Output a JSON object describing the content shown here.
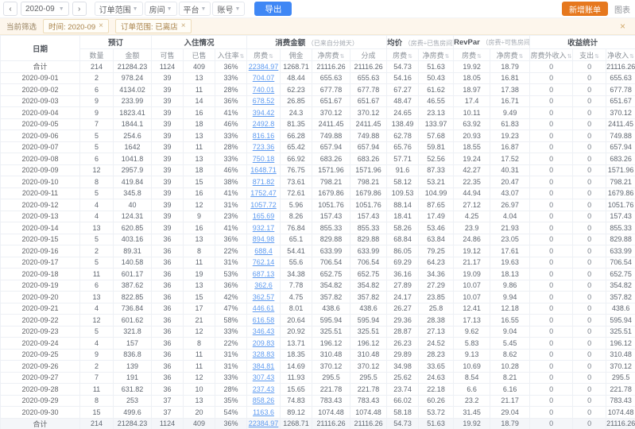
{
  "toolbar": {
    "prev": "‹",
    "month": "2020-09",
    "next": "›",
    "dropdowns": [
      "订单范围",
      "房间",
      "平台",
      "账号"
    ],
    "export_label": "导出",
    "add_label": "新增账单",
    "chart_label": "图表"
  },
  "filter_bar": {
    "label": "当前筛选",
    "tags": [
      {
        "text": "时间: 2020-09"
      },
      {
        "text": "订单范围: 已离店"
      }
    ],
    "close": "×"
  },
  "table": {
    "date_header": "日期",
    "groups": [
      {
        "label": "预订",
        "note": "",
        "span": 2
      },
      {
        "label": "入住情况",
        "note": "",
        "span": 3
      },
      {
        "label": "消费金额",
        "note": "（已来自分摊天）",
        "span": 4
      },
      {
        "label": "均价",
        "note": "（房费÷已售房间）",
        "span": 2
      },
      {
        "label": "RevPar",
        "note": "（房费÷可售房间）",
        "span": 2
      },
      {
        "label": "收益统计",
        "note": "",
        "span": 3
      }
    ],
    "subcolumns": [
      {
        "label": "数量",
        "sortable": false
      },
      {
        "label": "金额",
        "sortable": false
      },
      {
        "label": "可售",
        "sortable": false
      },
      {
        "label": "已售",
        "sortable": false
      },
      {
        "label": "入住率",
        "sortable": true
      },
      {
        "label": "房费",
        "sortable": true
      },
      {
        "label": "佣金",
        "sortable": false
      },
      {
        "label": "净房费",
        "sortable": true
      },
      {
        "label": "分成",
        "sortable": false
      },
      {
        "label": "房费",
        "sortable": true
      },
      {
        "label": "净房费",
        "sortable": true
      },
      {
        "label": "房费",
        "sortable": true
      },
      {
        "label": "净房费",
        "sortable": true
      },
      {
        "label": "房费外收入",
        "sortable": true
      },
      {
        "label": "支出",
        "sortable": true
      },
      {
        "label": "净收入",
        "sortable": true
      }
    ],
    "rows": [
      [
        "合计",
        "214",
        "21284.23",
        "1124",
        "409",
        "36%",
        "22384.97",
        "1268.71",
        "21116.26",
        "21116.26",
        "54.73",
        "51.63",
        "19.92",
        "18.79",
        "0",
        "0",
        "21116.26"
      ],
      [
        "2020-09-01",
        "2",
        "978.24",
        "39",
        "13",
        "33%",
        "704.07",
        "48.44",
        "655.63",
        "655.63",
        "54.16",
        "50.43",
        "18.05",
        "16.81",
        "0",
        "0",
        "655.63"
      ],
      [
        "2020-09-02",
        "6",
        "4134.02",
        "39",
        "11",
        "28%",
        "740.01",
        "62.23",
        "677.78",
        "677.78",
        "67.27",
        "61.62",
        "18.97",
        "17.38",
        "0",
        "0",
        "677.78"
      ],
      [
        "2020-09-03",
        "9",
        "233.99",
        "39",
        "14",
        "36%",
        "678.52",
        "26.85",
        "651.67",
        "651.67",
        "48.47",
        "46.55",
        "17.4",
        "16.71",
        "0",
        "0",
        "651.67"
      ],
      [
        "2020-09-04",
        "9",
        "1823.41",
        "39",
        "16",
        "41%",
        "394.42",
        "24.3",
        "370.12",
        "370.12",
        "24.65",
        "23.13",
        "10.11",
        "9.49",
        "0",
        "0",
        "370.12"
      ],
      [
        "2020-09-05",
        "7",
        "1844.1",
        "39",
        "18",
        "46%",
        "2492.8",
        "81.35",
        "2411.45",
        "2411.45",
        "138.49",
        "133.97",
        "63.92",
        "61.83",
        "0",
        "0",
        "2411.45"
      ],
      [
        "2020-09-06",
        "5",
        "254.6",
        "39",
        "13",
        "33%",
        "816.16",
        "66.28",
        "749.88",
        "749.88",
        "62.78",
        "57.68",
        "20.93",
        "19.23",
        "0",
        "0",
        "749.88"
      ],
      [
        "2020-09-07",
        "5",
        "1642",
        "39",
        "11",
        "28%",
        "723.36",
        "65.42",
        "657.94",
        "657.94",
        "65.76",
        "59.81",
        "18.55",
        "16.87",
        "0",
        "0",
        "657.94"
      ],
      [
        "2020-09-08",
        "6",
        "1041.8",
        "39",
        "13",
        "33%",
        "750.18",
        "66.92",
        "683.26",
        "683.26",
        "57.71",
        "52.56",
        "19.24",
        "17.52",
        "0",
        "0",
        "683.26"
      ],
      [
        "2020-09-09",
        "12",
        "2957.9",
        "39",
        "18",
        "46%",
        "1648.71",
        "76.75",
        "1571.96",
        "1571.96",
        "91.6",
        "87.33",
        "42.27",
        "40.31",
        "0",
        "0",
        "1571.96"
      ],
      [
        "2020-09-10",
        "8",
        "419.84",
        "39",
        "15",
        "38%",
        "871.82",
        "73.61",
        "798.21",
        "798.21",
        "58.12",
        "53.21",
        "22.35",
        "20.47",
        "0",
        "0",
        "798.21"
      ],
      [
        "2020-09-11",
        "5",
        "345.8",
        "39",
        "16",
        "41%",
        "1752.47",
        "72.61",
        "1679.86",
        "1679.86",
        "109.53",
        "104.99",
        "44.94",
        "43.07",
        "0",
        "0",
        "1679.86"
      ],
      [
        "2020-09-12",
        "4",
        "40",
        "39",
        "12",
        "31%",
        "1057.72",
        "5.96",
        "1051.76",
        "1051.76",
        "88.14",
        "87.65",
        "27.12",
        "26.97",
        "0",
        "0",
        "1051.76"
      ],
      [
        "2020-09-13",
        "4",
        "124.31",
        "39",
        "9",
        "23%",
        "165.69",
        "8.26",
        "157.43",
        "157.43",
        "18.41",
        "17.49",
        "4.25",
        "4.04",
        "0",
        "0",
        "157.43"
      ],
      [
        "2020-09-14",
        "13",
        "620.85",
        "39",
        "16",
        "41%",
        "932.17",
        "76.84",
        "855.33",
        "855.33",
        "58.26",
        "53.46",
        "23.9",
        "21.93",
        "0",
        "0",
        "855.33"
      ],
      [
        "2020-09-15",
        "5",
        "403.16",
        "36",
        "13",
        "36%",
        "894.98",
        "65.1",
        "829.88",
        "829.88",
        "68.84",
        "63.84",
        "24.86",
        "23.05",
        "0",
        "0",
        "829.88"
      ],
      [
        "2020-09-16",
        "2",
        "89.31",
        "36",
        "8",
        "22%",
        "688.4",
        "54.41",
        "633.99",
        "633.99",
        "86.05",
        "79.25",
        "19.12",
        "17.61",
        "0",
        "0",
        "633.99"
      ],
      [
        "2020-09-17",
        "5",
        "140.58",
        "36",
        "11",
        "31%",
        "762.14",
        "55.6",
        "706.54",
        "706.54",
        "69.29",
        "64.23",
        "21.17",
        "19.63",
        "0",
        "0",
        "706.54"
      ],
      [
        "2020-09-18",
        "11",
        "601.17",
        "36",
        "19",
        "53%",
        "687.13",
        "34.38",
        "652.75",
        "652.75",
        "36.16",
        "34.36",
        "19.09",
        "18.13",
        "0",
        "0",
        "652.75"
      ],
      [
        "2020-09-19",
        "6",
        "387.62",
        "36",
        "13",
        "36%",
        "362.6",
        "7.78",
        "354.82",
        "354.82",
        "27.89",
        "27.29",
        "10.07",
        "9.86",
        "0",
        "0",
        "354.82"
      ],
      [
        "2020-09-20",
        "13",
        "822.85",
        "36",
        "15",
        "42%",
        "362.57",
        "4.75",
        "357.82",
        "357.82",
        "24.17",
        "23.85",
        "10.07",
        "9.94",
        "0",
        "0",
        "357.82"
      ],
      [
        "2020-09-21",
        "4",
        "736.84",
        "36",
        "17",
        "47%",
        "446.61",
        "8.01",
        "438.6",
        "438.6",
        "26.27",
        "25.8",
        "12.41",
        "12.18",
        "0",
        "0",
        "438.6"
      ],
      [
        "2020-09-22",
        "12",
        "601.62",
        "36",
        "21",
        "58%",
        "616.58",
        "20.64",
        "595.94",
        "595.94",
        "29.36",
        "28.38",
        "17.13",
        "16.55",
        "0",
        "0",
        "595.94"
      ],
      [
        "2020-09-23",
        "5",
        "321.8",
        "36",
        "12",
        "33%",
        "346.43",
        "20.92",
        "325.51",
        "325.51",
        "28.87",
        "27.13",
        "9.62",
        "9.04",
        "0",
        "0",
        "325.51"
      ],
      [
        "2020-09-24",
        "4",
        "157",
        "36",
        "8",
        "22%",
        "209.83",
        "13.71",
        "196.12",
        "196.12",
        "26.23",
        "24.52",
        "5.83",
        "5.45",
        "0",
        "0",
        "196.12"
      ],
      [
        "2020-09-25",
        "9",
        "836.8",
        "36",
        "11",
        "31%",
        "328.83",
        "18.35",
        "310.48",
        "310.48",
        "29.89",
        "28.23",
        "9.13",
        "8.62",
        "0",
        "0",
        "310.48"
      ],
      [
        "2020-09-26",
        "2",
        "139",
        "36",
        "11",
        "31%",
        "384.81",
        "14.69",
        "370.12",
        "370.12",
        "34.98",
        "33.65",
        "10.69",
        "10.28",
        "0",
        "0",
        "370.12"
      ],
      [
        "2020-09-27",
        "7",
        "191",
        "36",
        "12",
        "33%",
        "307.43",
        "11.93",
        "295.5",
        "295.5",
        "25.62",
        "24.63",
        "8.54",
        "8.21",
        "0",
        "0",
        "295.5"
      ],
      [
        "2020-09-28",
        "11",
        "631.82",
        "36",
        "10",
        "28%",
        "237.43",
        "15.65",
        "221.78",
        "221.78",
        "23.74",
        "22.18",
        "6.6",
        "6.16",
        "0",
        "0",
        "221.78"
      ],
      [
        "2020-09-29",
        "8",
        "253",
        "37",
        "13",
        "35%",
        "858.26",
        "74.83",
        "783.43",
        "783.43",
        "66.02",
        "60.26",
        "23.2",
        "21.17",
        "0",
        "0",
        "783.43"
      ],
      [
        "2020-09-30",
        "15",
        "499.6",
        "37",
        "20",
        "54%",
        "1163.6",
        "89.12",
        "1074.48",
        "1074.48",
        "58.18",
        "53.72",
        "31.45",
        "29.04",
        "0",
        "0",
        "1074.48"
      ],
      [
        "合计",
        "214",
        "21284.23",
        "1124",
        "409",
        "36%",
        "22384.97",
        "1268.71",
        "21116.26",
        "21116.26",
        "54.73",
        "51.63",
        "19.92",
        "18.79",
        "0",
        "0",
        "21116.26"
      ]
    ]
  },
  "colors": {
    "accent_blue": "#3f87f5",
    "accent_orange": "#e6781e",
    "link_blue": "#5d9af0",
    "filter_bg": "#fdf6ec"
  }
}
